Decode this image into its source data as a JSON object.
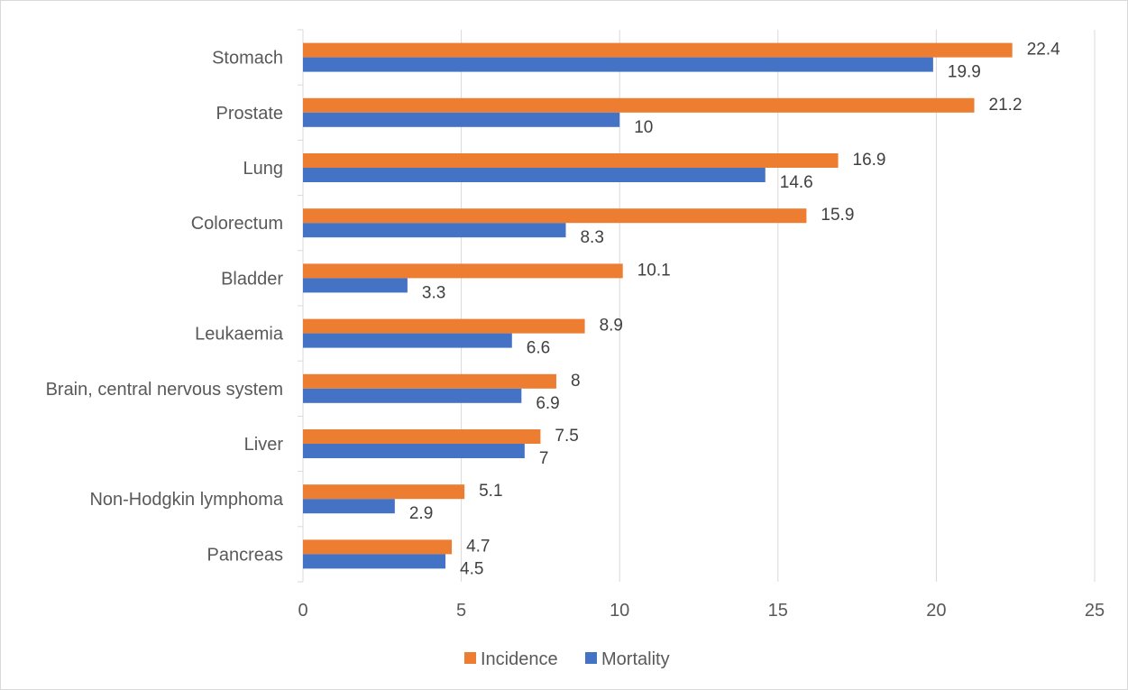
{
  "chart_data": {
    "type": "bar",
    "orientation": "horizontal",
    "categories": [
      "Stomach",
      "Prostate",
      "Lung",
      "Colorectum",
      "Bladder",
      "Leukaemia",
      "Brain, central nervous system",
      "Liver",
      "Non-Hodgkin lymphoma",
      "Pancreas"
    ],
    "series": [
      {
        "name": "Incidence",
        "color": "#ED7D31",
        "values": [
          22.4,
          21.2,
          16.9,
          15.9,
          10.1,
          8.9,
          8,
          7.5,
          5.1,
          4.7
        ]
      },
      {
        "name": "Mortality",
        "color": "#4472C4",
        "values": [
          19.9,
          10,
          14.6,
          8.3,
          3.3,
          6.6,
          6.9,
          7,
          2.9,
          4.5
        ]
      }
    ],
    "xlim": [
      0,
      25
    ],
    "xticks": [
      0,
      5,
      10,
      15,
      20,
      25
    ],
    "title": "",
    "xlabel": "",
    "ylabel": "",
    "grid": "vertical",
    "legend": "bottom",
    "data_labels": true
  }
}
